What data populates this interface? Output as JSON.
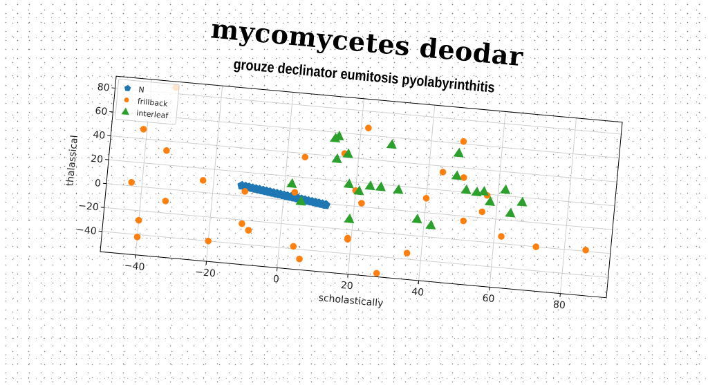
{
  "title": "mycomycetes deodar",
  "chart_data": {
    "type": "scatter",
    "title": "grouze declinator eumitosis pyolabyrinthitis",
    "xlabel": "scholastically",
    "ylabel": "thalassical",
    "xlim": [
      -50,
      93
    ],
    "ylim": [
      -57,
      90
    ],
    "xticks": [
      -40,
      -20,
      0,
      20,
      40,
      60,
      80
    ],
    "yticks": [
      -40,
      -20,
      0,
      20,
      40,
      60,
      80
    ],
    "xtick_labels": [
      "−40",
      "−20",
      "0",
      "20",
      "40",
      "60",
      "80"
    ],
    "ytick_labels": [
      "−40",
      "−20",
      "0",
      "20",
      "40",
      "60",
      "80"
    ],
    "grid": true,
    "legend": "top-left",
    "series": [
      {
        "name": "N",
        "marker": "pentagon",
        "color": "#1f77b4",
        "x": [
          -12,
          -11,
          -10,
          -9,
          -8,
          -7,
          -6,
          -5,
          -4,
          -3,
          -2,
          -1,
          0,
          1,
          2,
          3,
          4,
          5,
          6,
          7,
          8,
          9,
          10,
          11,
          12
        ],
        "y": [
          8.5,
          8.1,
          7.7,
          7.3,
          6.9,
          6.5,
          6.1,
          5.7,
          5.3,
          4.9,
          4.5,
          4.1,
          3.7,
          3.3,
          2.9,
          2.5,
          2.1,
          1.7,
          1.3,
          0.9,
          0.5,
          0.1,
          -0.3,
          -0.7,
          -1.1
        ]
      },
      {
        "name": "frillback",
        "marker": "circle",
        "color": "#ff7f0e",
        "x": [
          -33,
          -41,
          -34,
          -43,
          -33,
          -40,
          -40,
          -23,
          -20,
          -11,
          -9,
          -9,
          -11,
          3,
          5,
          4,
          6,
          16,
          19,
          19,
          20,
          22,
          22,
          28,
          36,
          40,
          44,
          49,
          50,
          51,
          56,
          57,
          62,
          72,
          86
        ],
        "y": [
          85,
          48,
          32,
          3,
          -10,
          -28,
          -42,
          10,
          -40,
          -23,
          -28,
          -28,
          4,
          7,
          37,
          -38,
          -48,
          43,
          -28,
          -27,
          13,
          3,
          66,
          -54,
          -35,
          12,
          35,
          62,
          32,
          -4,
          5,
          19,
          -14,
          -20,
          -19
        ],
        "marker_size": 9
      },
      {
        "name": "interleaf",
        "marker": "triangle",
        "color": "#2ca02c",
        "x": [
          2,
          5,
          13,
          14,
          14,
          17,
          18,
          19,
          21,
          24,
          27,
          29,
          32,
          38,
          42,
          48,
          48,
          51,
          54,
          56,
          58,
          62,
          64,
          67
        ],
        "y": [
          14,
          0,
          55,
          57,
          38,
          43,
          18,
          -11,
          13,
          18,
          18,
          54,
          17,
          -6,
          -10,
          52,
          33,
          22,
          21,
          22,
          14,
          25,
          6,
          16
        ]
      }
    ]
  }
}
